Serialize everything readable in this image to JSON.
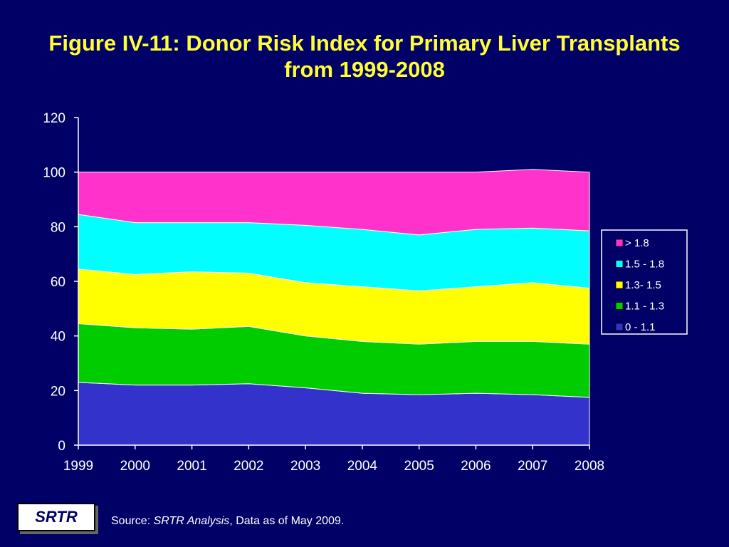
{
  "title": {
    "line1": "Figure IV-11: Donor Risk Index for Primary Liver Transplants",
    "line2": "from 1999-2008"
  },
  "chart_data": {
    "type": "area",
    "stacked": true,
    "categories": [
      "1999",
      "2000",
      "2001",
      "2002",
      "2003",
      "2004",
      "2005",
      "2006",
      "2007",
      "2008"
    ],
    "ylim": [
      0,
      120
    ],
    "yticks": [
      0,
      20,
      40,
      60,
      80,
      100,
      120
    ],
    "legend_position": "right",
    "series": [
      {
        "name": "0 - 1.1",
        "color": "#3333CC",
        "values": [
          23,
          22,
          22,
          22.5,
          21,
          19,
          18.5,
          19,
          18.5,
          17.5
        ]
      },
      {
        "name": "1.1 - 1.3",
        "color": "#00CC00",
        "values": [
          21.5,
          21,
          20.5,
          21,
          19,
          19,
          18.5,
          19,
          19.5,
          19.5
        ]
      },
      {
        "name": "1.3- 1.5",
        "color": "#FFFF00",
        "values": [
          20,
          19.5,
          21,
          19.5,
          19.5,
          20,
          19.5,
          20,
          21.5,
          20.5
        ]
      },
      {
        "name": "1.5 - 1.8",
        "color": "#00FFFF",
        "values": [
          20,
          19,
          18,
          18.5,
          21,
          21,
          20.5,
          21,
          20,
          21
        ]
      },
      {
        "name": "> 1.8",
        "color": "#FF33CC",
        "values": [
          15.5,
          18.5,
          18.5,
          18.5,
          19.5,
          21,
          23,
          21,
          21.5,
          21.5
        ]
      }
    ]
  },
  "footer": {
    "logo": "SRTR",
    "source_prefix": "Source: ",
    "source_italic": "SRTR Analysis",
    "source_suffix": ", Data as of May 2009."
  }
}
